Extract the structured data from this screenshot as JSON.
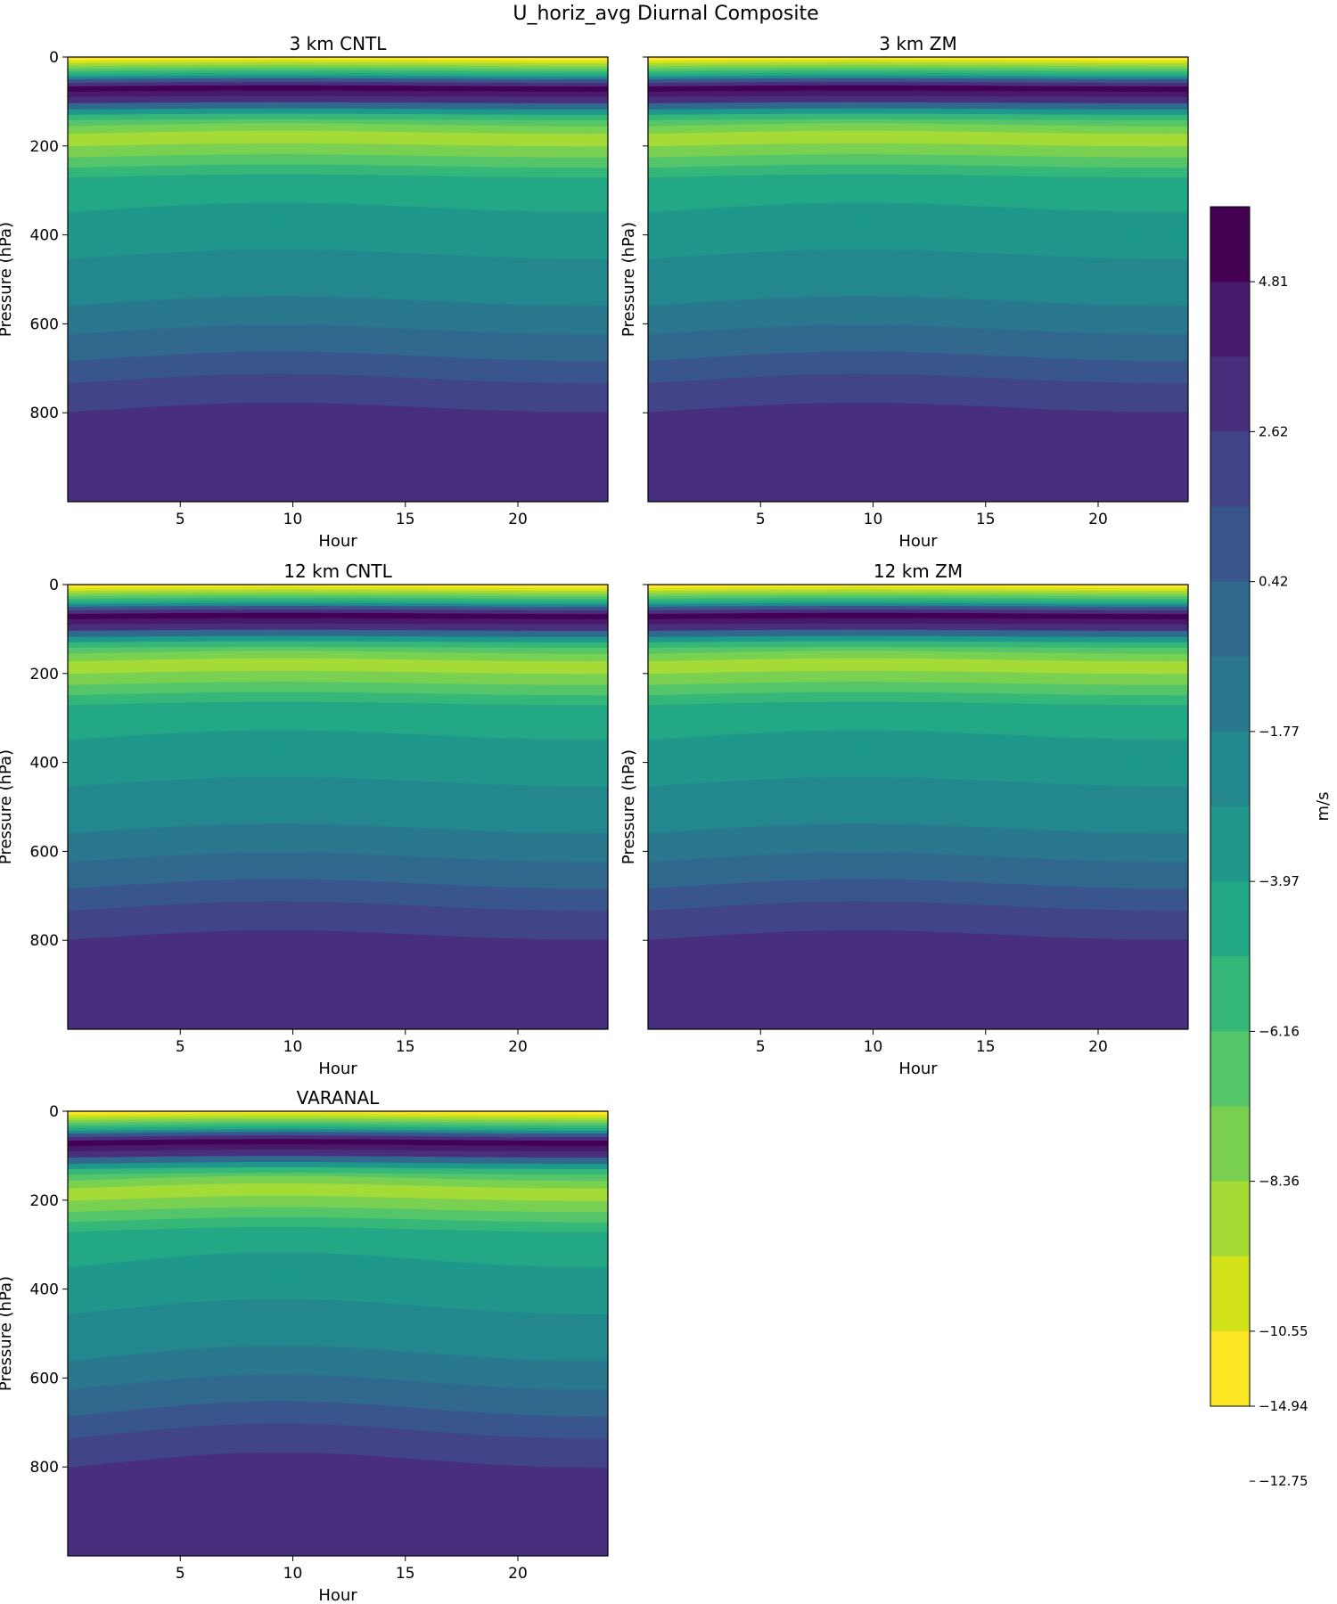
{
  "figure_title": "U_horiz_avg Diurnal Composite",
  "chart_data": [
    {
      "type": "heatmap",
      "title": "3 km CNTL",
      "xlabel": "Hour",
      "ylabel": "Pressure (hPa)",
      "xlim": [
        0,
        24
      ],
      "ylim": [
        0,
        1000
      ],
      "y_inverted": true,
      "xticks": [
        "5",
        "10",
        "15",
        "20"
      ],
      "yticks": [
        "0",
        "200",
        "400",
        "600",
        "800"
      ]
    },
    {
      "type": "heatmap",
      "title": "3 km ZM",
      "xlabel": "Hour",
      "ylabel": "Pressure (hPa)",
      "xlim": [
        0,
        24
      ],
      "ylim": [
        0,
        1000
      ],
      "y_inverted": true,
      "xticks": [
        "5",
        "10",
        "15",
        "20"
      ],
      "yticks": []
    },
    {
      "type": "heatmap",
      "title": "12 km CNTL",
      "xlabel": "Hour",
      "ylabel": "Pressure (hPa)",
      "xlim": [
        0,
        24
      ],
      "ylim": [
        0,
        1000
      ],
      "y_inverted": true,
      "xticks": [
        "5",
        "10",
        "15",
        "20"
      ],
      "yticks": [
        "0",
        "200",
        "400",
        "600",
        "800"
      ]
    },
    {
      "type": "heatmap",
      "title": "12 km ZM",
      "xlabel": "Hour",
      "ylabel": "Pressure (hPa)",
      "xlim": [
        0,
        24
      ],
      "ylim": [
        0,
        1000
      ],
      "y_inverted": true,
      "xticks": [
        "5",
        "10",
        "15",
        "20"
      ],
      "yticks": []
    },
    {
      "type": "heatmap",
      "title": "VARANAL",
      "xlabel": "Hour",
      "ylabel": "Pressure (hPa)",
      "xlim": [
        0,
        24
      ],
      "ylim": [
        0,
        1000
      ],
      "y_inverted": true,
      "xticks": [
        "5",
        "10",
        "15",
        "20"
      ],
      "yticks": [
        "0",
        "200",
        "400",
        "600",
        "800"
      ]
    }
  ],
  "colorbar": {
    "label": "m/s",
    "ticks": [
      "4.81",
      "2.62",
      "0.42",
      "−1.77",
      "−3.97",
      "−6.16",
      "−8.36",
      "−10.55",
      "−12.75",
      "−14.94"
    ],
    "colors": [
      "#440154",
      "#481a6c",
      "#472f7d",
      "#414487",
      "#39568c",
      "#31688e",
      "#2a788e",
      "#23888e",
      "#1f988b",
      "#22a884",
      "#35b779",
      "#54c568",
      "#7ad151",
      "#a5db36",
      "#d2e21b",
      "#fde725"
    ]
  }
}
